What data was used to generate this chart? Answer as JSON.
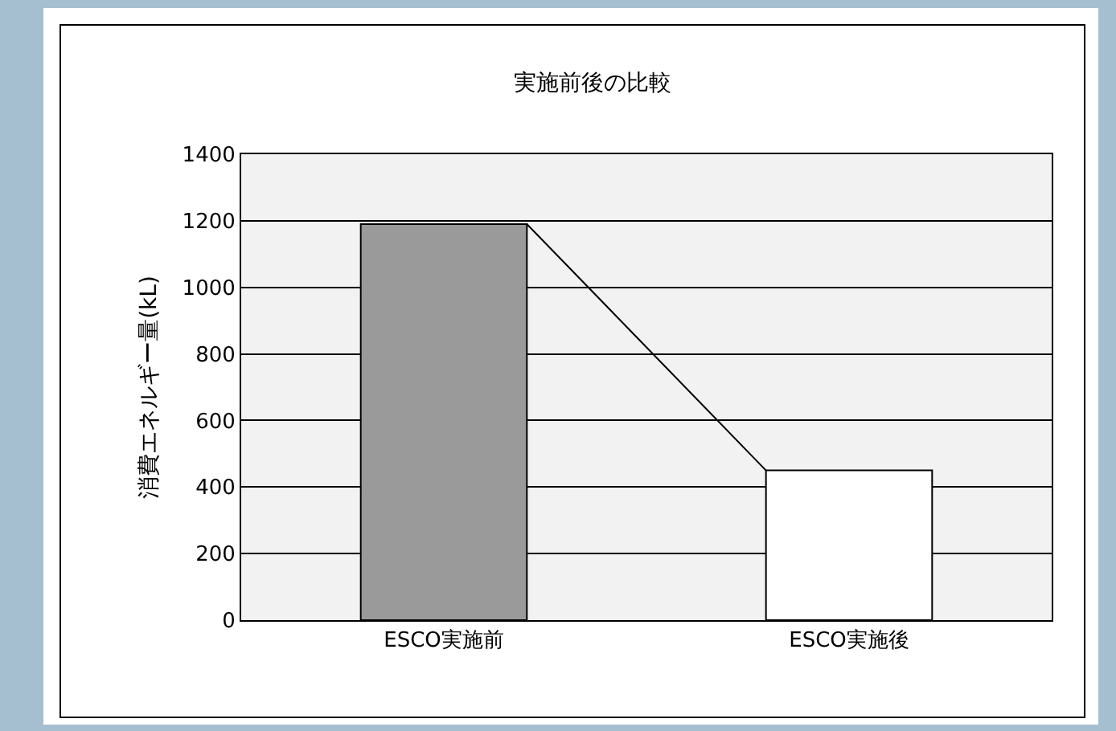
{
  "chart_data": {
    "type": "bar",
    "title": "実施前後の比較",
    "ylabel": "消費エネルギー量(kL)",
    "categories": [
      "ESCO実施前",
      "ESCO実施後"
    ],
    "values": [
      1190,
      450
    ],
    "colors": [
      "#9a9a9a",
      "#ffffff"
    ],
    "ylim": [
      0,
      1400
    ],
    "yticks": [
      0,
      200,
      400,
      600,
      800,
      1000,
      1200,
      1400
    ],
    "grid": "y"
  }
}
